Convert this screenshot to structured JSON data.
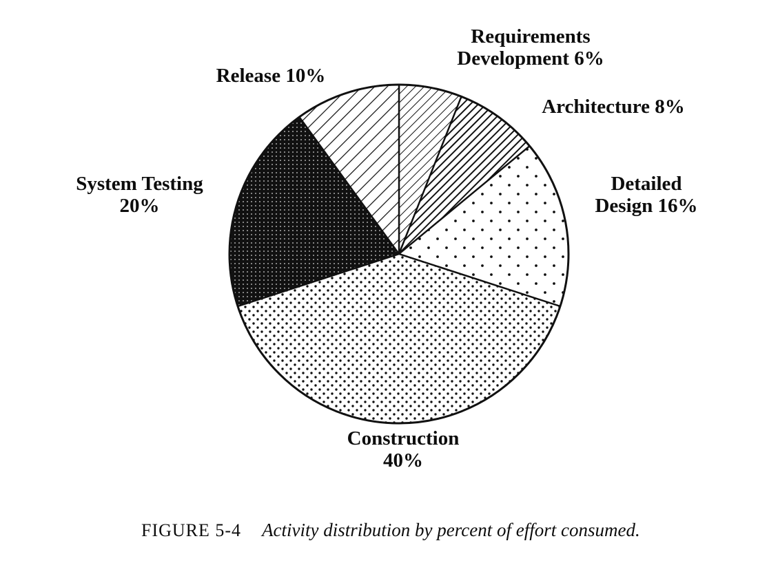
{
  "chart_data": {
    "type": "pie",
    "title": "Activity distribution by percent of effort consumed.",
    "unit": "%",
    "total": 100,
    "start_angle_deg": 0,
    "direction": "clockwise",
    "legend_position": "around",
    "slices": [
      {
        "name": "Requirements Development",
        "value": 6,
        "display": "Requirements\nDevelopment 6%",
        "pattern": "diagonal-thin"
      },
      {
        "name": "Architecture",
        "value": 8,
        "display": "Architecture 8%",
        "pattern": "diagonal-bold"
      },
      {
        "name": "Detailed Design",
        "value": 16,
        "display": "Detailed\nDesign 16%",
        "pattern": "dots-sparse"
      },
      {
        "name": "Construction",
        "value": 40,
        "display": "Construction\n40%",
        "pattern": "dots-dense"
      },
      {
        "name": "System Testing",
        "value": 20,
        "display": "System Testing\n20%",
        "pattern": "grid-dark"
      },
      {
        "name": "Release",
        "value": 10,
        "display": "Release 10%",
        "pattern": "diagonal-wide"
      }
    ]
  },
  "caption": {
    "figure_label": "FIGURE 5-4",
    "text": "Activity distribution by percent of effort consumed."
  },
  "colors": {
    "ink": "#111111",
    "paper": "#ffffff"
  }
}
